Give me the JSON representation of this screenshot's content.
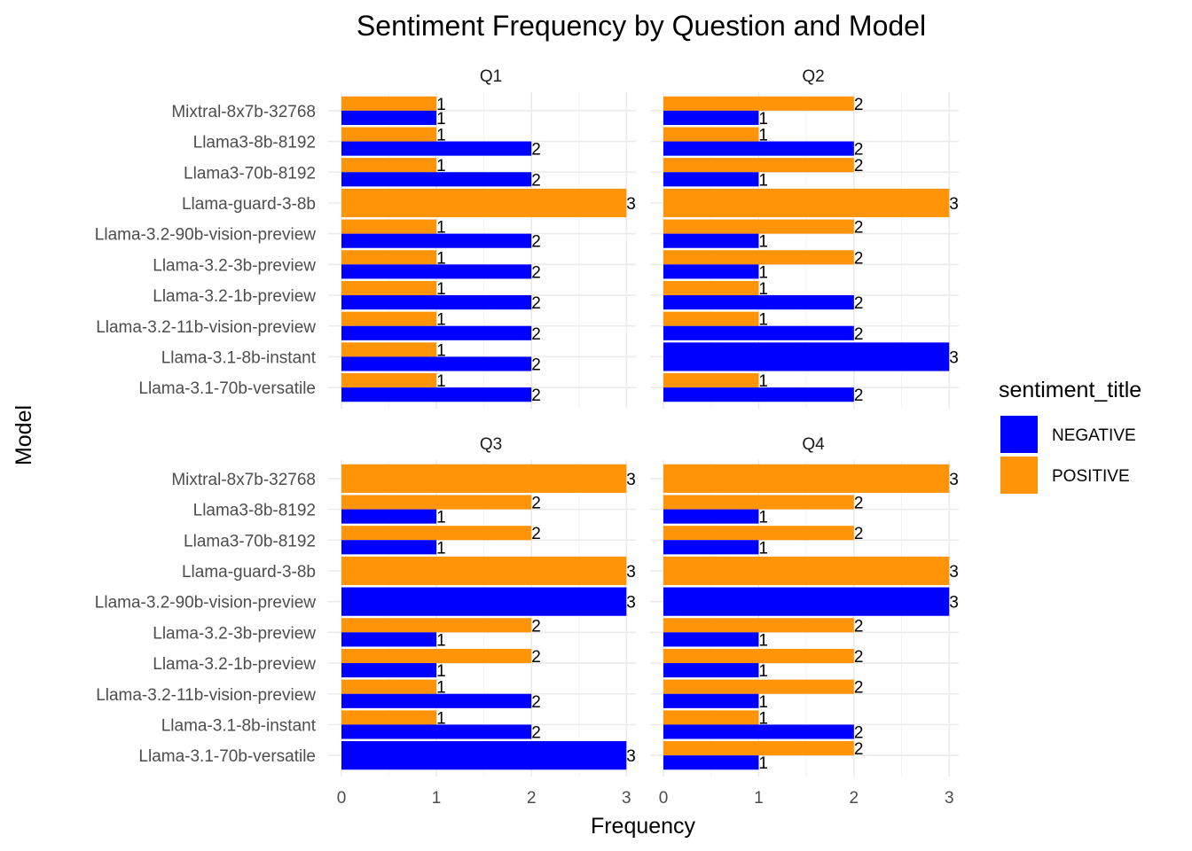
{
  "chart_data": {
    "type": "bar",
    "orientation": "horizontal",
    "title": "Sentiment Frequency by Question and Model",
    "xlabel": "Frequency",
    "ylabel": "Model",
    "xlim": [
      0,
      3.1
    ],
    "x_ticks": [
      0,
      1,
      2,
      3
    ],
    "grid": true,
    "legend": {
      "title": "sentiment_title",
      "placement": "right",
      "entries": [
        {
          "name": "NEGATIVE",
          "color": "#0000FF"
        },
        {
          "name": "POSITIVE",
          "color": "#FF9408"
        }
      ]
    },
    "categories": [
      "Mixtral-8x7b-32768",
      "Llama3-8b-8192",
      "Llama3-70b-8192",
      "Llama-guard-3-8b",
      "Llama-3.2-90b-vision-preview",
      "Llama-3.2-3b-preview",
      "Llama-3.2-1b-preview",
      "Llama-3.2-11b-vision-preview",
      "Llama-3.1-8b-instant",
      "Llama-3.1-70b-versatile"
    ],
    "facets": [
      {
        "name": "Q1",
        "series": [
          {
            "name": "NEGATIVE",
            "values": [
              1,
              2,
              2,
              null,
              2,
              2,
              2,
              2,
              2,
              2
            ]
          },
          {
            "name": "POSITIVE",
            "values": [
              1,
              1,
              1,
              3,
              1,
              1,
              1,
              1,
              1,
              1
            ]
          }
        ]
      },
      {
        "name": "Q2",
        "series": [
          {
            "name": "NEGATIVE",
            "values": [
              1,
              2,
              1,
              null,
              1,
              1,
              2,
              2,
              3,
              2
            ]
          },
          {
            "name": "POSITIVE",
            "values": [
              2,
              1,
              2,
              3,
              2,
              2,
              1,
              1,
              null,
              1
            ]
          }
        ]
      },
      {
        "name": "Q3",
        "series": [
          {
            "name": "NEGATIVE",
            "values": [
              null,
              1,
              1,
              null,
              3,
              1,
              1,
              2,
              2,
              3
            ]
          },
          {
            "name": "POSITIVE",
            "values": [
              3,
              2,
              2,
              3,
              null,
              2,
              2,
              1,
              1,
              null
            ]
          }
        ]
      },
      {
        "name": "Q4",
        "series": [
          {
            "name": "NEGATIVE",
            "values": [
              null,
              1,
              1,
              null,
              3,
              1,
              1,
              1,
              2,
              1
            ]
          },
          {
            "name": "POSITIVE",
            "values": [
              3,
              2,
              2,
              3,
              null,
              2,
              2,
              2,
              1,
              2
            ]
          }
        ]
      }
    ]
  }
}
